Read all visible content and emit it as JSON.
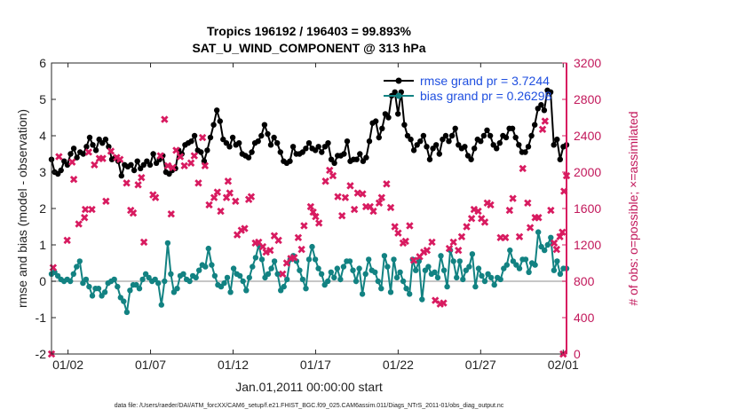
{
  "chart_data": {
    "type": "line",
    "title": "Tropics 196192 / 196403 = 99.893%",
    "subtitle": "SAT_U_WIND_COMPONENT @ 313 hPa",
    "xlabel": "Jan.01,2011 00:00:00 start",
    "ylabel": "rmse and bias (model - observation)",
    "y2label": "# of obs: o=possible; ×=assimilated",
    "footer": "data file: /Users/raeder/DAI/ATM_forcXX/CAM6_setup/f.e21.FHIST_BGC.f09_025.CAM6assim.011/Diags_NTrS_2011-01/obs_diag_output.nc",
    "xlim": [
      0,
      31.2
    ],
    "ylim": [
      -2,
      6
    ],
    "y2lim": [
      0,
      3200
    ],
    "x_ticks": [
      {
        "pos": 1,
        "label": "01/02"
      },
      {
        "pos": 6,
        "label": "01/07"
      },
      {
        "pos": 11,
        "label": "01/12"
      },
      {
        "pos": 16,
        "label": "01/17"
      },
      {
        "pos": 21,
        "label": "01/22"
      },
      {
        "pos": 26,
        "label": "01/27"
      },
      {
        "pos": 31,
        "label": "02/01"
      }
    ],
    "y_ticks": [
      "-2",
      "-1",
      "0",
      "1",
      "2",
      "3",
      "4",
      "5",
      "6"
    ],
    "y2_ticks": [
      "0",
      "400",
      "800",
      "1200",
      "1600",
      "2000",
      "2400",
      "2800",
      "3200"
    ],
    "series": [
      {
        "name": "rmse grand pr = 3.7244",
        "color": "#000000",
        "values": [
          3.35,
          3.0,
          2.95,
          3.05,
          3.3,
          3.2,
          3.5,
          3.65,
          3.4,
          3.55,
          3.5,
          3.7,
          3.95,
          3.75,
          3.6,
          3.9,
          3.8,
          3.9,
          3.7,
          3.35,
          3.4,
          3.3,
          2.9,
          3.2,
          3.15,
          3.2,
          3.05,
          3.3,
          3.1,
          3.2,
          3.3,
          3.2,
          3.5,
          3.25,
          3.35,
          3.45,
          3.0,
          2.95,
          3.05,
          3.1,
          3.6,
          3.5,
          3.75,
          3.8,
          3.85,
          4.0,
          3.6,
          3.55,
          3.3,
          3.6,
          3.95,
          4.3,
          4.7,
          4.4,
          3.9,
          3.8,
          3.7,
          3.95,
          3.75,
          3.8,
          3.5,
          3.45,
          3.4,
          3.55,
          3.8,
          3.85,
          4.0,
          4.3,
          4.05,
          3.75,
          3.95,
          3.8,
          3.55,
          3.3,
          3.25,
          3.3,
          3.7,
          3.5,
          3.5,
          3.55,
          3.65,
          3.8,
          3.65,
          3.6,
          3.7,
          3.55,
          3.7,
          3.8,
          3.35,
          3.25,
          3.45,
          3.45,
          3.5,
          3.85,
          3.3,
          3.35,
          3.35,
          3.5,
          3.3,
          3.4,
          3.85,
          4.35,
          4.4,
          3.95,
          4.2,
          4.6,
          4.5,
          5.1,
          5.2,
          4.6,
          5.2,
          4.3,
          4.0,
          3.9,
          3.6,
          3.75,
          3.85,
          4.0,
          3.7,
          3.35,
          3.65,
          3.75,
          3.5,
          3.9,
          4.0,
          3.85,
          4.0,
          4.2,
          3.75,
          3.65,
          3.7,
          3.45,
          3.35,
          3.65,
          3.9,
          3.85,
          4.0,
          4.15,
          4.0,
          3.75,
          3.65,
          3.8,
          4.0,
          3.95,
          4.2,
          4.2,
          3.95,
          3.75,
          3.55,
          3.55,
          3.7,
          4.0,
          4.3,
          4.75,
          4.85,
          4.7,
          5.25,
          5.2,
          3.75,
          3.9,
          3.35,
          3.7,
          3.75
        ]
      },
      {
        "name": "bias grand pr = 0.26298",
        "color": "#128282",
        "values": [
          0.2,
          0.25,
          0.15,
          0.05,
          0.0,
          0.05,
          0.0,
          0.2,
          0.4,
          0.55,
          -0.05,
          0.05,
          -0.15,
          -0.4,
          -0.2,
          -0.2,
          -0.4,
          -0.3,
          -0.05,
          0.0,
          0.05,
          -0.15,
          -0.45,
          -0.55,
          -0.85,
          -0.25,
          -0.1,
          -0.1,
          -0.2,
          0.05,
          0.2,
          0.1,
          0.0,
          0.05,
          -0.05,
          -0.65,
          0.0,
          1.05,
          0.2,
          -0.3,
          -0.2,
          0.15,
          0.2,
          0.05,
          0.0,
          0.15,
          0.1,
          0.3,
          0.45,
          0.4,
          0.9,
          0.45,
          0.15,
          -0.1,
          -0.15,
          -0.05,
          0.1,
          -0.3,
          0.35,
          0.2,
          0.15,
          0.0,
          -0.25,
          0.1,
          0.4,
          0.65,
          1.0,
          0.6,
          0.1,
          0.2,
          0.35,
          0.55,
          0.2,
          -0.25,
          -0.15,
          0.05,
          0.6,
          0.7,
          0.55,
          0.3,
          0.05,
          -0.2,
          0.6,
          0.95,
          0.6,
          0.35,
          0.2,
          -0.1,
          0.0,
          0.25,
          0.1,
          0.35,
          0.05,
          0.4,
          0.55,
          0.55,
          0.3,
          0.0,
          0.35,
          -0.35,
          0.2,
          0.6,
          0.3,
          0.25,
          0.0,
          -0.2,
          0.7,
          0.4,
          -0.3,
          0.6,
          0.1,
          0.25,
          0.0,
          -0.2,
          -0.35,
          0.6,
          0.3,
          0.55,
          -0.5,
          0.3,
          0.4,
          0.2,
          0.25,
          0.1,
          0.7,
          0.3,
          -0.15,
          0.85,
          0.55,
          0.1,
          0.55,
          0.05,
          0.3,
          0.4,
          0.75,
          -0.15,
          0.35,
          0.15,
          0.0,
          0.2,
          0.1,
          -0.1,
          0.1,
          0.05,
          0.35,
          0.45,
          0.85,
          0.55,
          0.45,
          0.35,
          0.6,
          0.6,
          0.25,
          0.5,
          0.45,
          1.35,
          0.95,
          0.85,
          1.0,
          1.2,
          0.3,
          0.55,
          0.2,
          0.35,
          0.35
        ]
      },
      {
        "name": "# of obs assimilated",
        "axis": "right",
        "marker": "x",
        "color": "#d81b60",
        "points": [
          [
            0.1,
            950
          ],
          [
            0.45,
            2170
          ],
          [
            0.95,
            1250
          ],
          [
            1.25,
            2110
          ],
          [
            1.35,
            1920
          ],
          [
            1.65,
            1430
          ],
          [
            2.0,
            1500
          ],
          [
            2.05,
            1590
          ],
          [
            2.25,
            2220
          ],
          [
            2.45,
            1590
          ],
          [
            2.6,
            2080
          ],
          [
            2.9,
            2150
          ],
          [
            3.1,
            2150
          ],
          [
            3.3,
            1680
          ],
          [
            3.6,
            2230
          ],
          [
            3.95,
            2160
          ],
          [
            4.15,
            2140
          ],
          [
            4.55,
            1880
          ],
          [
            4.8,
            1580
          ],
          [
            4.95,
            1550
          ],
          [
            5.25,
            1860
          ],
          [
            5.45,
            1940
          ],
          [
            5.6,
            1230
          ],
          [
            6.15,
            1750
          ],
          [
            6.3,
            1720
          ],
          [
            6.6,
            2180
          ],
          [
            6.85,
            2580
          ],
          [
            7.05,
            2070
          ],
          [
            7.25,
            1540
          ],
          [
            7.35,
            2050
          ],
          [
            7.55,
            2240
          ],
          [
            7.8,
            2170
          ],
          [
            8.05,
            2070
          ],
          [
            8.45,
            2100
          ],
          [
            8.65,
            2180
          ],
          [
            8.9,
            1880
          ],
          [
            9.15,
            2380
          ],
          [
            9.3,
            2070
          ],
          [
            9.55,
            1640
          ],
          [
            9.85,
            1720
          ],
          [
            10.05,
            1780
          ],
          [
            10.25,
            1570
          ],
          [
            10.6,
            1720
          ],
          [
            10.7,
            1900
          ],
          [
            10.8,
            1770
          ],
          [
            11.15,
            1680
          ],
          [
            11.25,
            1310
          ],
          [
            11.5,
            1360
          ],
          [
            11.7,
            1380
          ],
          [
            11.95,
            1700
          ],
          [
            12.1,
            1730
          ],
          [
            12.35,
            1220
          ],
          [
            12.55,
            1230
          ],
          [
            12.8,
            1180
          ],
          [
            13.0,
            1120
          ],
          [
            13.25,
            1140
          ],
          [
            13.5,
            1300
          ],
          [
            13.75,
            1250
          ],
          [
            14.0,
            880
          ],
          [
            14.25,
            1000
          ],
          [
            14.5,
            1050
          ],
          [
            14.7,
            1060
          ],
          [
            14.95,
            1280
          ],
          [
            15.15,
            1150
          ],
          [
            15.3,
            1410
          ],
          [
            15.7,
            1620
          ],
          [
            15.85,
            1560
          ],
          [
            16.0,
            1510
          ],
          [
            16.2,
            1440
          ],
          [
            16.6,
            1900
          ],
          [
            16.85,
            2020
          ],
          [
            17.05,
            1960
          ],
          [
            17.35,
            1730
          ],
          [
            17.6,
            1520
          ],
          [
            17.8,
            1720
          ],
          [
            18.1,
            1850
          ],
          [
            18.35,
            1590
          ],
          [
            18.55,
            1770
          ],
          [
            18.85,
            1760
          ],
          [
            19.05,
            1620
          ],
          [
            19.3,
            1620
          ],
          [
            19.5,
            1570
          ],
          [
            19.85,
            1660
          ],
          [
            20.0,
            1720
          ],
          [
            20.3,
            1870
          ],
          [
            20.55,
            1610
          ],
          [
            20.8,
            1400
          ],
          [
            21.0,
            1330
          ],
          [
            21.3,
            1220
          ],
          [
            21.45,
            1240
          ],
          [
            21.7,
            1410
          ],
          [
            21.95,
            1030
          ],
          [
            22.3,
            1070
          ],
          [
            22.55,
            1120
          ],
          [
            22.75,
            1140
          ],
          [
            23.05,
            1230
          ],
          [
            23.25,
            590
          ],
          [
            23.55,
            550
          ],
          [
            23.75,
            560
          ],
          [
            24.1,
            1160
          ],
          [
            24.35,
            1230
          ],
          [
            24.65,
            1140
          ],
          [
            24.85,
            1290
          ],
          [
            25.15,
            1400
          ],
          [
            25.45,
            1490
          ],
          [
            25.6,
            1590
          ],
          [
            25.85,
            1570
          ],
          [
            26.05,
            1490
          ],
          [
            26.25,
            1450
          ],
          [
            26.4,
            1660
          ],
          [
            26.6,
            1640
          ],
          [
            27.2,
            1280
          ],
          [
            27.5,
            1280
          ],
          [
            27.75,
            1580
          ],
          [
            27.95,
            1710
          ],
          [
            28.35,
            1290
          ],
          [
            28.55,
            2040
          ],
          [
            28.85,
            1660
          ],
          [
            29.0,
            1390
          ],
          [
            29.3,
            1500
          ],
          [
            29.5,
            1500
          ],
          [
            29.75,
            2470
          ],
          [
            29.9,
            2560
          ],
          [
            30.25,
            1580
          ],
          [
            30.45,
            1220
          ],
          [
            30.6,
            1150
          ],
          [
            30.8,
            1290
          ],
          [
            30.95,
            1340
          ],
          [
            31.05,
            1790
          ],
          [
            31.2,
            1960
          ],
          [
            0.0,
            0
          ],
          [
            31.0,
            0
          ]
        ]
      }
    ],
    "legend": [
      "rmse grand pr = 3.7244",
      "bias grand pr = 0.26298"
    ],
    "legend_position": "top-right",
    "zero_line": true
  }
}
